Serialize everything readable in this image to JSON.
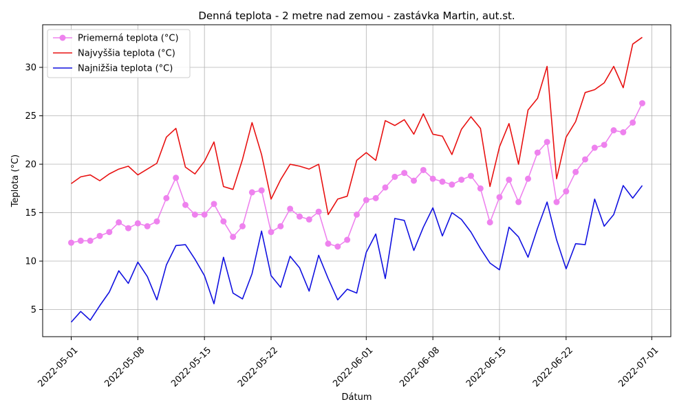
{
  "chart_data": {
    "type": "line",
    "title": "Denná teplota - 2 metre nad zemou - zastávka Martin, aut.st.",
    "xlabel": "Dátum",
    "ylabel": "Teplota (°C)",
    "grid": true,
    "legend_position": "top-left",
    "x_start": "2022-05-01",
    "x_tick_labels": [
      "2022-05-01",
      "2022-05-08",
      "2022-05-15",
      "2022-05-22",
      "2022-06-01",
      "2022-06-08",
      "2022-06-15",
      "2022-06-22",
      "2022-07-01"
    ],
    "x_ticks": [
      "2022-05-01",
      "2022-05-08",
      "2022-05-15",
      "2022-05-22",
      "2022-06-01",
      "2022-06-08",
      "2022-06-15",
      "2022-06-22",
      "2022-07-01"
    ],
    "xlim": [
      "2022-04-28",
      "2022-07-03"
    ],
    "y_ticks": [
      5,
      10,
      15,
      20,
      25,
      30
    ],
    "y_tick_labels": [
      "5",
      "10",
      "15",
      "20",
      "25",
      "30"
    ],
    "ylim": [
      2.2,
      34.4
    ],
    "series": [
      {
        "name": "Priemerná teplota (°C)",
        "color": "#ee82ee",
        "marker": "circle",
        "values": [
          11.9,
          12.1,
          12.1,
          12.6,
          13.0,
          14.0,
          13.4,
          13.9,
          13.6,
          14.1,
          16.5,
          18.6,
          15.8,
          14.8,
          14.8,
          15.9,
          14.1,
          12.5,
          13.6,
          17.1,
          17.3,
          13.0,
          13.6,
          15.4,
          14.6,
          14.3,
          15.1,
          11.8,
          11.5,
          12.2,
          14.8,
          16.3,
          16.5,
          17.6,
          18.7,
          19.1,
          18.3,
          19.4,
          18.5,
          18.2,
          17.9,
          18.4,
          18.8,
          17.5,
          14.0,
          16.6,
          18.4,
          16.1,
          18.5,
          21.2,
          22.3,
          16.1,
          17.2,
          19.2,
          20.5,
          21.7,
          22.0,
          23.5,
          23.3,
          24.3,
          26.3
        ]
      },
      {
        "name": "Najvyššia teplota (°C)",
        "color": "#e81010",
        "marker": "none",
        "values": [
          18.0,
          18.7,
          18.9,
          18.3,
          19.0,
          19.5,
          19.8,
          18.9,
          19.5,
          20.1,
          22.8,
          23.7,
          19.7,
          19.0,
          20.3,
          22.3,
          17.7,
          17.4,
          20.5,
          24.3,
          21.0,
          16.4,
          18.4,
          20.0,
          19.8,
          19.5,
          20.0,
          14.8,
          16.4,
          16.7,
          20.4,
          21.2,
          20.4,
          24.5,
          24.0,
          24.6,
          23.1,
          25.2,
          23.1,
          22.9,
          21.0,
          23.6,
          24.9,
          23.7,
          17.7,
          21.8,
          24.2,
          20.0,
          25.6,
          26.8,
          30.1,
          18.5,
          22.8,
          24.4,
          27.4,
          27.7,
          28.4,
          30.1,
          27.9,
          32.4,
          33.1
        ]
      },
      {
        "name": "Najnižšia teplota (°C)",
        "color": "#1010e0",
        "marker": "none",
        "values": [
          3.7,
          4.8,
          3.9,
          5.4,
          6.8,
          9.0,
          7.7,
          9.9,
          8.4,
          6.0,
          9.6,
          11.6,
          11.7,
          10.2,
          8.5,
          5.6,
          10.4,
          6.7,
          6.1,
          8.7,
          13.1,
          8.5,
          7.3,
          10.5,
          9.3,
          6.9,
          10.6,
          8.2,
          6.0,
          7.1,
          6.7,
          10.9,
          12.8,
          8.2,
          14.4,
          14.2,
          11.1,
          13.5,
          15.5,
          12.6,
          15.0,
          14.3,
          13.0,
          11.3,
          9.8,
          9.1,
          13.5,
          12.5,
          10.4,
          13.4,
          16.1,
          12.2,
          9.2,
          11.8,
          11.7,
          16.4,
          13.6,
          14.8,
          17.8,
          16.5,
          17.8
        ]
      }
    ]
  }
}
